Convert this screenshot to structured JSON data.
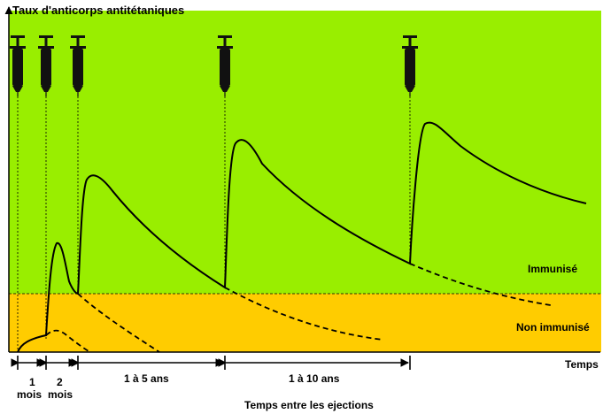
{
  "title": "Taux d'anticorps antitétaniques",
  "x_axis_label": "Temps",
  "bottom_caption": "Temps entre les ejections",
  "zones": {
    "immune": {
      "label": "Immunisé",
      "color": "#99ee00"
    },
    "non_immune": {
      "label": "Non immunisé",
      "color": "#ffcc00"
    }
  },
  "intervals": [
    {
      "line1": "1",
      "line2": "mois"
    },
    {
      "line1": "2",
      "line2": "mois"
    },
    {
      "line1": "1 à 5 ans",
      "line2": ""
    },
    {
      "line1": "1 à 10 ans",
      "line2": ""
    }
  ],
  "injections_count": 5,
  "colors": {
    "curve": "#000000",
    "axis": "#000000",
    "syringe": "#111111"
  }
}
